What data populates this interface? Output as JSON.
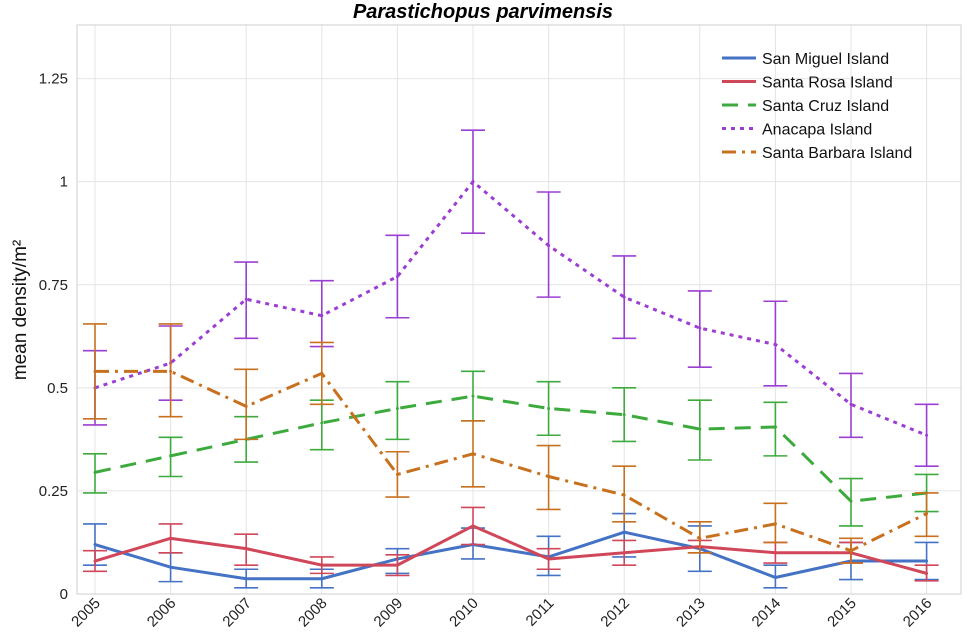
{
  "chart_data": {
    "type": "line",
    "title": "Parastichopus parvimensis",
    "xlabel": "",
    "ylabel": "mean density/m²",
    "x": [
      "2005",
      "2006",
      "2007",
      "2008",
      "2009",
      "2010",
      "2011",
      "2012",
      "2013",
      "2014",
      "2015",
      "2016"
    ],
    "ylim": [
      0,
      1.38
    ],
    "yticks": [
      "0",
      "0.25",
      "0.5",
      "0.75",
      "1",
      "1.25"
    ],
    "ytick_values": [
      0,
      0.25,
      0.5,
      0.75,
      1,
      1.25
    ],
    "grid": true,
    "legend_position": "top-right",
    "series": [
      {
        "name": "San Miguel Island",
        "color": "#4472C4",
        "dash": "solid",
        "values": [
          0.12,
          0.065,
          0.037,
          0.037,
          0.085,
          0.12,
          0.09,
          0.15,
          0.11,
          0.04,
          0.08,
          0.08
        ],
        "err_low": [
          0.07,
          0.03,
          0.015,
          0.015,
          0.05,
          0.085,
          0.045,
          0.09,
          0.055,
          0.015,
          0.035,
          0.035
        ],
        "err_high": [
          0.17,
          0.1,
          0.06,
          0.06,
          0.11,
          0.16,
          0.14,
          0.195,
          0.165,
          0.07,
          0.125,
          0.125
        ]
      },
      {
        "name": "Santa Rosa Island",
        "color": "#D0475A",
        "dash": "solid",
        "values": [
          0.08,
          0.135,
          0.11,
          0.07,
          0.07,
          0.165,
          0.085,
          0.1,
          0.115,
          0.1,
          0.1,
          0.05
        ],
        "err_low": [
          0.055,
          0.1,
          0.07,
          0.05,
          0.045,
          0.12,
          0.06,
          0.07,
          0.1,
          0.075,
          0.075,
          0.032
        ],
        "err_high": [
          0.105,
          0.17,
          0.145,
          0.09,
          0.095,
          0.21,
          0.11,
          0.13,
          0.13,
          0.125,
          0.125,
          0.07
        ]
      },
      {
        "name": "Santa Cruz Island",
        "color": "#3DAA3D",
        "dash": "long",
        "values": [
          0.295,
          0.335,
          0.375,
          0.415,
          0.45,
          0.48,
          0.45,
          0.435,
          0.4,
          0.405,
          0.225,
          0.245
        ],
        "err_low": [
          0.245,
          0.285,
          0.32,
          0.35,
          0.375,
          0.42,
          0.385,
          0.37,
          0.325,
          0.335,
          0.165,
          0.2
        ],
        "err_high": [
          0.34,
          0.38,
          0.43,
          0.47,
          0.515,
          0.54,
          0.515,
          0.5,
          0.47,
          0.465,
          0.28,
          0.29
        ]
      },
      {
        "name": "Anacapa Island",
        "color": "#9B3FD3",
        "dash": "dot",
        "values": [
          0.5,
          0.56,
          0.715,
          0.675,
          0.77,
          1.0,
          0.845,
          0.72,
          0.645,
          0.605,
          0.46,
          0.385
        ],
        "err_low": [
          0.41,
          0.47,
          0.62,
          0.6,
          0.67,
          0.875,
          0.72,
          0.62,
          0.55,
          0.505,
          0.38,
          0.31
        ],
        "err_high": [
          0.59,
          0.65,
          0.805,
          0.76,
          0.87,
          1.125,
          0.975,
          0.82,
          0.735,
          0.71,
          0.535,
          0.46
        ]
      },
      {
        "name": "Santa Barbara Island",
        "color": "#C7711F",
        "dash": "dashdot",
        "values": [
          0.54,
          0.54,
          0.455,
          0.535,
          0.29,
          0.34,
          0.285,
          0.24,
          0.135,
          0.17,
          0.105,
          0.195
        ],
        "err_low": [
          0.425,
          0.43,
          0.375,
          0.46,
          0.235,
          0.26,
          0.205,
          0.175,
          0.1,
          0.125,
          0.075,
          0.14
        ],
        "err_high": [
          0.655,
          0.655,
          0.545,
          0.61,
          0.345,
          0.42,
          0.36,
          0.31,
          0.175,
          0.22,
          0.135,
          0.245
        ]
      }
    ]
  }
}
